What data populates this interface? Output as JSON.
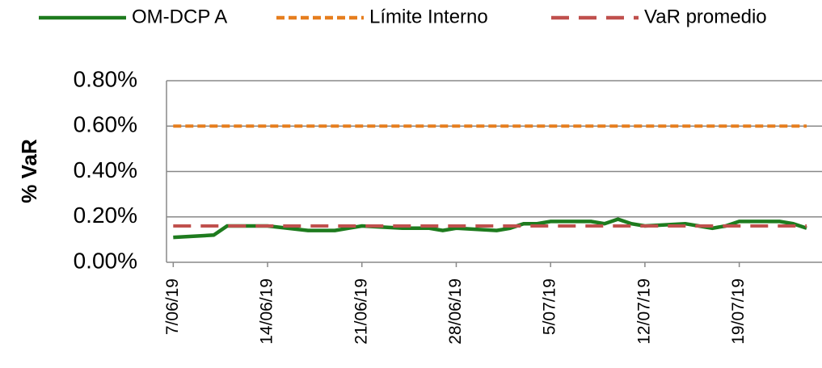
{
  "chart_data": {
    "type": "line",
    "y_axis_label": "% VaR",
    "x": [
      "7/06/19",
      "10/06/19",
      "11/06/19",
      "12/06/19",
      "13/06/19",
      "14/06/19",
      "17/06/19",
      "18/06/19",
      "19/06/19",
      "20/06/19",
      "21/06/19",
      "24/06/19",
      "25/06/19",
      "26/06/19",
      "27/06/19",
      "28/06/19",
      "1/07/19",
      "2/07/19",
      "3/07/19",
      "4/07/19",
      "5/07/19",
      "8/07/19",
      "9/07/19",
      "10/07/19",
      "11/07/19",
      "12/07/19",
      "15/07/19",
      "16/07/19",
      "17/07/19",
      "18/07/19",
      "19/07/19",
      "22/07/19",
      "23/07/19",
      "24/07/19"
    ],
    "series": [
      {
        "name": "OM-DCP A",
        "color": "#1e7b1e",
        "style": "solid",
        "values": [
          0.11,
          0.12,
          0.16,
          0.16,
          0.16,
          0.16,
          0.14,
          0.14,
          0.14,
          0.15,
          0.16,
          0.15,
          0.15,
          0.15,
          0.14,
          0.15,
          0.14,
          0.15,
          0.17,
          0.17,
          0.18,
          0.18,
          0.17,
          0.19,
          0.17,
          0.16,
          0.17,
          0.16,
          0.15,
          0.16,
          0.18,
          0.18,
          0.17,
          0.15
        ]
      },
      {
        "name": "Límite Interno",
        "color": "#e67e1e",
        "style": "dotted",
        "values": [
          0.6,
          0.6,
          0.6,
          0.6,
          0.6,
          0.6,
          0.6,
          0.6,
          0.6,
          0.6,
          0.6,
          0.6,
          0.6,
          0.6,
          0.6,
          0.6,
          0.6,
          0.6,
          0.6,
          0.6,
          0.6,
          0.6,
          0.6,
          0.6,
          0.6,
          0.6,
          0.6,
          0.6,
          0.6,
          0.6,
          0.6,
          0.6,
          0.6,
          0.6
        ]
      },
      {
        "name": "VaR promedio",
        "color": "#c0504d",
        "style": "dashed",
        "values": [
          0.16,
          0.16,
          0.16,
          0.16,
          0.16,
          0.16,
          0.16,
          0.16,
          0.16,
          0.16,
          0.16,
          0.16,
          0.16,
          0.16,
          0.16,
          0.16,
          0.16,
          0.16,
          0.16,
          0.16,
          0.16,
          0.16,
          0.16,
          0.16,
          0.16,
          0.16,
          0.16,
          0.16,
          0.16,
          0.16,
          0.16,
          0.16,
          0.16,
          0.16
        ]
      }
    ],
    "xlim": [
      "7/06/19",
      "25/07/19"
    ],
    "xticks": [
      "7/06/19",
      "14/06/19",
      "21/06/19",
      "28/06/19",
      "5/07/19",
      "12/07/19",
      "19/07/19"
    ],
    "ylim": [
      0,
      0.8
    ],
    "yticks": [
      {
        "value": 0,
        "label": "0.00%"
      },
      {
        "value": 0.2,
        "label": "0.20%"
      },
      {
        "value": 0.4,
        "label": "0.40%"
      },
      {
        "value": 0.6,
        "label": "0.60%"
      },
      {
        "value": 0.8,
        "label": "0.80%"
      }
    ],
    "grid": true,
    "legend": "top"
  }
}
